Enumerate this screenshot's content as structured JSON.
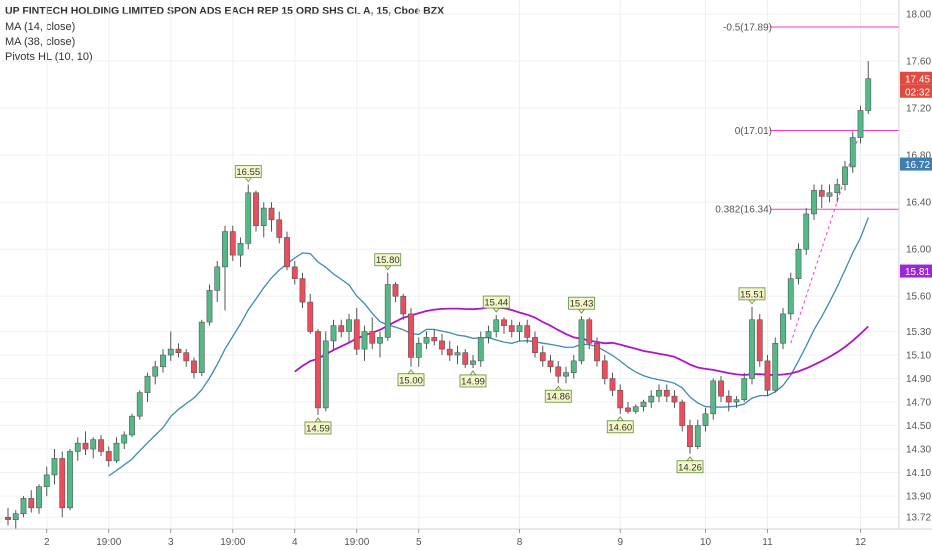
{
  "header": {
    "title": "UP FINTECH HOLDING LIMITED SPON ADS EACH REP 15 ORD SHS CL A, 15, Cboe BZX",
    "indicators": [
      "MA (14, close)",
      "MA (38, close)",
      "Pivots HL (10, 10)"
    ]
  },
  "colors": {
    "up": "#53b987",
    "down": "#eb4d5c",
    "ma14": "#3e8bb5",
    "ma38": "#b014c8",
    "fib": "#ff33cc",
    "price_tag": "#e04a3f",
    "ma14_tag": "#3e7fb1",
    "ma38_tag": "#9c27d6"
  },
  "chart_data": {
    "type": "candlestick",
    "title": "UP FINTECH HOLDING LIMITED SPON ADS EACH REP 15 ORD SHS CL A, 15, Cboe BZX",
    "timeframe": "15",
    "y_axis": {
      "ylim": [
        13.62,
        18.12
      ],
      "ticks": [
        "18.00",
        "17.60",
        "17.20",
        "16.80",
        "16.40",
        "16.00",
        "15.60",
        "15.30",
        "15.10",
        "14.90",
        "14.70",
        "14.50",
        "14.30",
        "14.10",
        "13.90",
        "13.72"
      ],
      "tick_values": [
        18.0,
        17.6,
        17.2,
        16.8,
        16.4,
        16.0,
        15.6,
        15.3,
        15.1,
        14.9,
        14.7,
        14.5,
        14.3,
        14.1,
        13.9,
        13.72
      ]
    },
    "x_axis": {
      "labels": [
        "2",
        "19:00",
        "3",
        "19:00",
        "4",
        "19:00",
        "5",
        "8",
        "9",
        "10",
        "11",
        "12"
      ],
      "bar_index": [
        5,
        13,
        21,
        29,
        37,
        45,
        53,
        66,
        79,
        90,
        98,
        110
      ],
      "n_bars": 112
    },
    "candles": [
      [
        13.72,
        13.8,
        13.65,
        13.7
      ],
      [
        13.7,
        13.78,
        13.62,
        13.75
      ],
      [
        13.75,
        13.9,
        13.72,
        13.88
      ],
      [
        13.88,
        13.95,
        13.76,
        13.8
      ],
      [
        13.8,
        14.0,
        13.75,
        13.98
      ],
      [
        13.98,
        14.15,
        13.9,
        14.08
      ],
      [
        14.08,
        14.3,
        14.0,
        14.22
      ],
      [
        14.22,
        14.28,
        13.72,
        13.8
      ],
      [
        13.8,
        14.3,
        13.78,
        14.28
      ],
      [
        14.28,
        14.4,
        14.2,
        14.35
      ],
      [
        14.35,
        14.45,
        14.25,
        14.3
      ],
      [
        14.3,
        14.4,
        14.22,
        14.38
      ],
      [
        14.38,
        14.42,
        14.24,
        14.28
      ],
      [
        14.28,
        14.32,
        14.15,
        14.2
      ],
      [
        14.2,
        14.4,
        14.18,
        14.35
      ],
      [
        14.35,
        14.45,
        14.3,
        14.42
      ],
      [
        14.42,
        14.6,
        14.4,
        14.58
      ],
      [
        14.58,
        14.8,
        14.55,
        14.78
      ],
      [
        14.78,
        14.95,
        14.7,
        14.92
      ],
      [
        14.92,
        15.05,
        14.85,
        15.0
      ],
      [
        15.0,
        15.15,
        14.95,
        15.1
      ],
      [
        15.1,
        15.3,
        15.05,
        15.15
      ],
      [
        15.15,
        15.2,
        15.08,
        15.12
      ],
      [
        15.12,
        15.15,
        15.0,
        15.05
      ],
      [
        15.05,
        15.08,
        14.9,
        14.95
      ],
      [
        14.95,
        15.4,
        14.92,
        15.38
      ],
      [
        15.38,
        15.7,
        15.35,
        15.65
      ],
      [
        15.65,
        15.9,
        15.55,
        15.85
      ],
      [
        15.85,
        16.2,
        15.48,
        16.15
      ],
      [
        16.15,
        16.2,
        15.9,
        15.95
      ],
      [
        15.95,
        16.1,
        15.85,
        16.05
      ],
      [
        16.05,
        16.55,
        16.0,
        16.48
      ],
      [
        16.48,
        16.5,
        16.15,
        16.2
      ],
      [
        16.2,
        16.4,
        16.1,
        16.35
      ],
      [
        16.35,
        16.4,
        16.15,
        16.25
      ],
      [
        16.25,
        16.32,
        16.05,
        16.1
      ],
      [
        16.1,
        16.15,
        15.82,
        15.85
      ],
      [
        15.85,
        15.9,
        15.7,
        15.75
      ],
      [
        15.75,
        15.8,
        15.5,
        15.55
      ],
      [
        15.55,
        15.62,
        15.28,
        15.3
      ],
      [
        15.3,
        15.32,
        14.59,
        14.65
      ],
      [
        14.65,
        15.3,
        14.62,
        15.22
      ],
      [
        15.22,
        15.4,
        15.15,
        15.35
      ],
      [
        15.35,
        15.4,
        15.25,
        15.3
      ],
      [
        15.3,
        15.45,
        15.2,
        15.4
      ],
      [
        15.4,
        15.5,
        15.1,
        15.15
      ],
      [
        15.15,
        15.35,
        15.05,
        15.3
      ],
      [
        15.3,
        15.42,
        15.15,
        15.2
      ],
      [
        15.2,
        15.3,
        15.08,
        15.25
      ],
      [
        15.25,
        15.8,
        15.22,
        15.7
      ],
      [
        15.7,
        15.72,
        15.55,
        15.6
      ],
      [
        15.6,
        15.62,
        15.4,
        15.45
      ],
      [
        15.45,
        15.5,
        15.0,
        15.08
      ],
      [
        15.08,
        15.25,
        15.0,
        15.2
      ],
      [
        15.2,
        15.3,
        15.15,
        15.25
      ],
      [
        15.25,
        15.32,
        15.18,
        15.22
      ],
      [
        15.22,
        15.28,
        15.1,
        15.15
      ],
      [
        15.15,
        15.22,
        15.05,
        15.1
      ],
      [
        15.1,
        15.18,
        15.02,
        15.12
      ],
      [
        15.12,
        15.15,
        14.99,
        15.02
      ],
      [
        15.02,
        15.1,
        14.99,
        15.05
      ],
      [
        15.05,
        15.3,
        15.0,
        15.25
      ],
      [
        15.25,
        15.35,
        15.2,
        15.3
      ],
      [
        15.3,
        15.44,
        15.25,
        15.4
      ],
      [
        15.4,
        15.42,
        15.28,
        15.35
      ],
      [
        15.35,
        15.4,
        15.25,
        15.3
      ],
      [
        15.3,
        15.38,
        15.22,
        15.35
      ],
      [
        15.35,
        15.4,
        15.2,
        15.25
      ],
      [
        15.25,
        15.3,
        15.08,
        15.12
      ],
      [
        15.12,
        15.18,
        15.0,
        15.05
      ],
      [
        15.05,
        15.1,
        14.95,
        15.0
      ],
      [
        15.0,
        15.05,
        14.86,
        14.92
      ],
      [
        14.92,
        15.0,
        14.86,
        14.95
      ],
      [
        14.95,
        15.1,
        14.9,
        15.05
      ],
      [
        15.05,
        15.43,
        15.02,
        15.4
      ],
      [
        15.4,
        15.42,
        15.15,
        15.2
      ],
      [
        15.2,
        15.25,
        15.0,
        15.05
      ],
      [
        15.05,
        15.1,
        14.85,
        14.9
      ],
      [
        14.9,
        14.95,
        14.75,
        14.8
      ],
      [
        14.8,
        14.85,
        14.6,
        14.65
      ],
      [
        14.65,
        14.7,
        14.6,
        14.62
      ],
      [
        14.62,
        14.68,
        14.6,
        14.66
      ],
      [
        14.66,
        14.72,
        14.62,
        14.7
      ],
      [
        14.7,
        14.8,
        14.65,
        14.75
      ],
      [
        14.75,
        14.85,
        14.7,
        14.8
      ],
      [
        14.8,
        14.85,
        14.7,
        14.75
      ],
      [
        14.75,
        14.8,
        14.65,
        14.7
      ],
      [
        14.7,
        14.72,
        14.45,
        14.5
      ],
      [
        14.5,
        14.55,
        14.26,
        14.32
      ],
      [
        14.32,
        14.55,
        14.3,
        14.5
      ],
      [
        14.5,
        14.65,
        14.45,
        14.6
      ],
      [
        14.6,
        14.9,
        14.55,
        14.88
      ],
      [
        14.88,
        14.92,
        14.7,
        14.75
      ],
      [
        14.75,
        14.8,
        14.62,
        14.7
      ],
      [
        14.7,
        14.75,
        14.65,
        14.72
      ],
      [
        14.72,
        14.95,
        14.7,
        14.9
      ],
      [
        14.9,
        15.51,
        14.85,
        15.4
      ],
      [
        15.4,
        15.45,
        15.0,
        15.05
      ],
      [
        15.05,
        15.1,
        14.75,
        14.8
      ],
      [
        14.8,
        15.25,
        14.78,
        15.2
      ],
      [
        15.2,
        15.5,
        15.15,
        15.45
      ],
      [
        15.45,
        15.8,
        15.4,
        15.75
      ],
      [
        15.75,
        16.05,
        15.7,
        16.0
      ],
      [
        16.0,
        16.35,
        15.95,
        16.3
      ],
      [
        16.3,
        16.55,
        16.25,
        16.5
      ],
      [
        16.5,
        16.55,
        16.35,
        16.45
      ],
      [
        16.45,
        16.55,
        16.4,
        16.48
      ],
      [
        16.48,
        16.6,
        16.4,
        16.55
      ],
      [
        16.55,
        16.75,
        16.5,
        16.7
      ],
      [
        16.7,
        17.0,
        16.65,
        16.95
      ],
      [
        16.95,
        17.22,
        16.9,
        17.18
      ],
      [
        17.18,
        17.6,
        17.15,
        17.45
      ]
    ],
    "ma14": {
      "name": "MA (14, close)",
      "last": 16.72
    },
    "ma38": {
      "name": "MA (38, close)",
      "last": 15.81
    },
    "pivots": [
      {
        "label": "16.55",
        "bar": 31,
        "type": "high",
        "value": 16.55
      },
      {
        "label": "14.59",
        "bar": 40,
        "type": "low",
        "value": 14.59
      },
      {
        "label": "15.80",
        "bar": 49,
        "type": "high",
        "value": 15.8
      },
      {
        "label": "15.00",
        "bar": 52,
        "type": "low",
        "value": 15.0
      },
      {
        "label": "14.99",
        "bar": 60,
        "type": "low",
        "value": 14.99
      },
      {
        "label": "15.44",
        "bar": 63,
        "type": "high",
        "value": 15.44
      },
      {
        "label": "14.86",
        "bar": 71,
        "type": "low",
        "value": 14.86
      },
      {
        "label": "15.43",
        "bar": 74,
        "type": "high",
        "value": 15.43
      },
      {
        "label": "14.60",
        "bar": 79,
        "type": "low",
        "value": 14.6
      },
      {
        "label": "14.26",
        "bar": 88,
        "type": "low",
        "value": 14.26
      },
      {
        "label": "15.51",
        "bar": 96,
        "type": "high",
        "value": 15.51
      }
    ],
    "fib_levels": [
      {
        "label": "-0.5(17.89)",
        "value": 17.89
      },
      {
        "label": "0(17.01)",
        "value": 17.01
      },
      {
        "label": "0.382(16.34)",
        "value": 16.34
      }
    ],
    "price_tags": [
      {
        "label": "17.45",
        "value": 17.45,
        "kind": "last"
      },
      {
        "label": "02:32",
        "value": 17.32,
        "kind": "countdown"
      },
      {
        "label": "16.72",
        "value": 16.72,
        "kind": "ma14"
      },
      {
        "label": "15.81",
        "value": 15.81,
        "kind": "ma38"
      }
    ]
  }
}
